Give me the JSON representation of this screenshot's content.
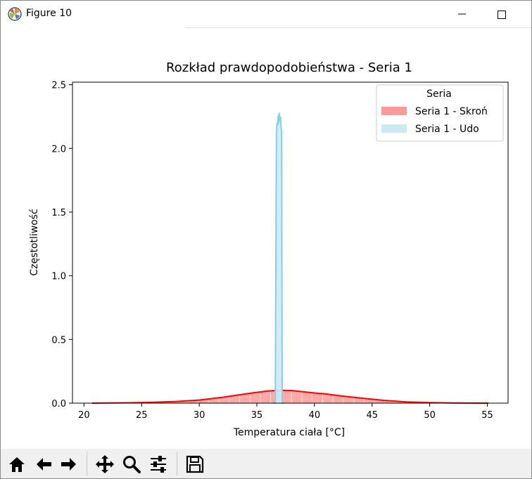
{
  "window": {
    "title": "Figure 10",
    "app_icon": "matplotlib-logo",
    "controls": [
      "minimize-icon",
      "maximize-icon"
    ]
  },
  "toolbar": {
    "buttons": [
      "home-icon",
      "back-arrow-icon",
      "forward-arrow-icon",
      "pan-icon",
      "zoom-icon",
      "subplots-config-icon",
      "save-icon"
    ]
  },
  "chart_data": {
    "type": "area",
    "title": "Rozkład prawdopodobieństwa - Seria 1",
    "xlabel": "Temperatura ciała [°C]",
    "ylabel": "Częstotliwość",
    "xlim": [
      19.0,
      56.8
    ],
    "ylim": [
      0.0,
      2.52
    ],
    "xticks": [
      "20",
      "25",
      "30",
      "35",
      "40",
      "45",
      "50",
      "55"
    ],
    "yticks": [
      "0.0",
      "0.5",
      "1.0",
      "1.5",
      "2.0",
      "2.5"
    ],
    "legend": {
      "title": "Seria",
      "position": "top-right",
      "entries": [
        "Seria 1 - Skroń",
        "Seria 1 - Udo"
      ]
    },
    "series": [
      {
        "name": "Seria 1 - Skroń",
        "color": "#ff0000",
        "fill_color": "#ff9999",
        "x": [
          20.7,
          22,
          24,
          26,
          28,
          30,
          32,
          34,
          35,
          36,
          37,
          38,
          39,
          40,
          41,
          42,
          44,
          46,
          48,
          50,
          52,
          55.1
        ],
        "y": [
          0.0,
          0.001,
          0.003,
          0.007,
          0.013,
          0.024,
          0.045,
          0.072,
          0.085,
          0.096,
          0.101,
          0.099,
          0.09,
          0.08,
          0.072,
          0.06,
          0.04,
          0.022,
          0.01,
          0.004,
          0.001,
          0.0
        ]
      },
      {
        "name": "Seria 1 - Udo",
        "color": "#87ceeb",
        "fill_color": "#cde9f6",
        "x": [
          36.4,
          36.6,
          36.7,
          36.75,
          36.8,
          36.85,
          36.9,
          36.95,
          37.0,
          37.05,
          37.1,
          37.15,
          37.2,
          37.3,
          37.4
        ],
        "y": [
          0.0,
          0.0,
          2.12,
          2.2,
          2.18,
          2.26,
          2.2,
          2.28,
          2.22,
          2.25,
          2.16,
          2.14,
          0.0,
          0.0,
          0.0
        ]
      }
    ],
    "grid": false
  }
}
